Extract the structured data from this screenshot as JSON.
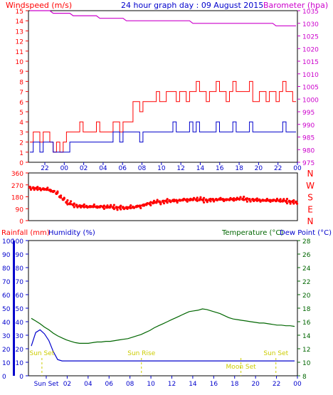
{
  "header": {
    "left_title": "Windspeed (m/s)",
    "center_title": "24 hour graph day : 09 August 2015",
    "right_title": "Barometer (hpa)"
  },
  "colors": {
    "wind_average": "#0000cc",
    "wind_gust": "#ff0000",
    "barometer": "#cc00cc",
    "direction": "#ff0000",
    "temperature": "#006600",
    "rainfall_axis": "#0000cc",
    "humidity": "#0000cc",
    "events": "#cccc00",
    "background": "#ffffff"
  },
  "chart_data": [
    {
      "type": "line",
      "name": "wind-baro",
      "x_ticks": [
        "22",
        "00",
        "02",
        "04",
        "06",
        "08",
        "10",
        "12",
        "14",
        "16",
        "18",
        "20",
        "22",
        "00"
      ],
      "y_left_ticks": [
        "0",
        "1",
        "2",
        "3",
        "4",
        "5",
        "6",
        "7",
        "8",
        "9",
        "10",
        "11",
        "12",
        "13",
        "14",
        "15"
      ],
      "y_right_ticks": [
        "975",
        "980",
        "985",
        "990",
        "995",
        "1000",
        "1005",
        "1010",
        "1015",
        "1020",
        "1025",
        "1030",
        "1035"
      ],
      "ylim_left": [
        0,
        15
      ],
      "ylim_right": [
        975,
        1035
      ],
      "series": [
        {
          "key": "gust",
          "values": [
            2,
            3,
            3,
            2,
            3,
            3,
            2,
            1,
            2,
            1,
            2,
            3,
            3,
            3,
            3,
            4,
            3,
            3,
            3,
            3,
            4,
            3,
            3,
            3,
            3,
            4,
            4,
            3,
            4,
            4,
            4,
            6,
            6,
            5,
            6,
            6,
            6,
            6,
            7,
            6,
            6,
            7,
            7,
            7,
            6,
            7,
            7,
            6,
            7,
            7,
            8,
            7,
            7,
            6,
            7,
            7,
            8,
            7,
            7,
            6,
            7,
            8,
            7,
            7,
            7,
            7,
            8,
            6,
            6,
            7,
            7,
            6,
            7,
            7,
            6,
            7,
            8,
            7,
            7,
            6,
            6
          ]
        },
        {
          "key": "average",
          "values": [
            1,
            2,
            2,
            1,
            2,
            2,
            2,
            1,
            1,
            1,
            1,
            1,
            2,
            2,
            2,
            2,
            2,
            2,
            2,
            2,
            2,
            2,
            2,
            2,
            2,
            3,
            3,
            2,
            3,
            3,
            3,
            3,
            3,
            2,
            3,
            3,
            3,
            3,
            3,
            3,
            3,
            3,
            3,
            4,
            3,
            3,
            3,
            3,
            4,
            3,
            4,
            3,
            3,
            3,
            3,
            3,
            4,
            3,
            3,
            3,
            3,
            4,
            3,
            3,
            3,
            3,
            4,
            3,
            3,
            3,
            3,
            3,
            3,
            3,
            3,
            3,
            4,
            3,
            3,
            3,
            3
          ]
        },
        {
          "key": "barometer",
          "values": [
            1035,
            1035,
            1035,
            1035,
            1035,
            1035,
            1035,
            1034,
            1034,
            1034,
            1034,
            1034,
            1034,
            1033,
            1033,
            1033,
            1033,
            1033,
            1033,
            1033,
            1033,
            1032,
            1032,
            1032,
            1032,
            1032,
            1032,
            1032,
            1032,
            1031,
            1031,
            1031,
            1031,
            1031,
            1031,
            1031,
            1031,
            1031,
            1031,
            1031,
            1031,
            1031,
            1031,
            1031,
            1031,
            1031,
            1031,
            1031,
            1031,
            1030,
            1030,
            1030,
            1030,
            1030,
            1030,
            1030,
            1030,
            1030,
            1030,
            1030,
            1030,
            1030,
            1030,
            1030,
            1030,
            1030,
            1030,
            1030,
            1030,
            1030,
            1030,
            1030,
            1030,
            1030,
            1029,
            1029,
            1029,
            1029,
            1029,
            1029,
            1029
          ]
        }
      ]
    },
    {
      "type": "scatter",
      "name": "wind-direction",
      "y_ticks": [
        "0",
        "90",
        "180",
        "270",
        "360"
      ],
      "compass_labels": [
        "N",
        "W",
        "S",
        "E",
        "N"
      ],
      "ylim": [
        0,
        360
      ],
      "values": [
        252,
        248,
        245,
        242,
        240,
        236,
        230,
        220,
        205,
        180,
        160,
        138,
        128,
        120,
        116,
        112,
        110,
        108,
        106,
        106,
        104,
        104,
        104,
        102,
        102,
        100,
        100,
        100,
        100,
        98,
        100,
        102,
        106,
        110,
        116,
        122,
        128,
        134,
        138,
        142,
        146,
        148,
        150,
        152,
        152,
        154,
        156,
        156,
        156,
        158,
        158,
        158,
        156,
        156,
        158,
        160,
        160,
        162,
        160,
        158,
        158,
        160,
        160,
        162,
        162,
        162,
        160,
        160,
        158,
        156,
        154,
        152,
        152,
        152,
        150,
        150,
        148,
        146,
        146,
        144,
        140
      ]
    },
    {
      "type": "line",
      "name": "rain-humidity-temperature",
      "x_ticks": [
        "Sun Set",
        "02",
        "04",
        "06",
        "08",
        "10",
        "12",
        "14",
        "16",
        "18",
        "20",
        "22",
        "00"
      ],
      "y_left_ticks": [
        "0",
        "10",
        "20",
        "30",
        "40",
        "50",
        "60",
        "70",
        "80",
        "90",
        "100"
      ],
      "y_right_ticks": [
        "8",
        "10",
        "12",
        "14",
        "16",
        "18",
        "20",
        "22",
        "24",
        "26",
        "28"
      ],
      "ylim_left": [
        0,
        100
      ],
      "ylim_right": [
        8,
        28
      ],
      "series": [
        {
          "key": "temperature",
          "values": [
            16.5,
            16.1,
            15.7,
            15.2,
            14.8,
            14.3,
            13.9,
            13.6,
            13.3,
            13.1,
            12.9,
            12.8,
            12.8,
            12.8,
            12.9,
            13.0,
            13.0,
            13.1,
            13.1,
            13.2,
            13.3,
            13.4,
            13.5,
            13.7,
            13.9,
            14.1,
            14.4,
            14.7,
            15.1,
            15.4,
            15.7,
            16.0,
            16.3,
            16.6,
            16.9,
            17.2,
            17.5,
            17.6,
            17.7,
            17.9,
            17.8,
            17.6,
            17.4,
            17.2,
            16.9,
            16.6,
            16.4,
            16.3,
            16.2,
            16.1,
            16.0,
            15.9,
            15.8,
            15.8,
            15.7,
            15.6,
            15.5,
            15.5,
            15.4,
            15.4,
            15.3
          ]
        },
        {
          "key": "humidity",
          "values": [
            22,
            32,
            34,
            31,
            26,
            18,
            12,
            11,
            11,
            11,
            11,
            11,
            11,
            11,
            11,
            11,
            11,
            11,
            11,
            11,
            11,
            11,
            11,
            11,
            11,
            11,
            11,
            11,
            11,
            11,
            11,
            11,
            11,
            11,
            11,
            11,
            11,
            11,
            11,
            11,
            11,
            11,
            11,
            11,
            11,
            11,
            11,
            11,
            11,
            11,
            11,
            11,
            11,
            11,
            11,
            11,
            11,
            11,
            11,
            11,
            11
          ]
        },
        {
          "key": "rainfall",
          "values": [
            0,
            0,
            0,
            0,
            0,
            0,
            0,
            0,
            0,
            0,
            0,
            0,
            0,
            0,
            0,
            0,
            0,
            0,
            0,
            0,
            0,
            0,
            0,
            0,
            0,
            0,
            0,
            0,
            0,
            0,
            0,
            0,
            0,
            0,
            0,
            0,
            0,
            0,
            0,
            0,
            0,
            0,
            0,
            0,
            0,
            0,
            0,
            0,
            0,
            0,
            0,
            0,
            0,
            0,
            0,
            0,
            0,
            0,
            0,
            0,
            0
          ]
        }
      ]
    }
  ],
  "panel3_labels": {
    "rainfall": "Rainfall (mm)",
    "humidity": "Humidity (%)",
    "temperature": "Temperature (°C)",
    "dew_point": "Dew Point (°C)"
  },
  "events": [
    {
      "label": "Sun Set",
      "x_fraction": 0.05
    },
    {
      "label": "Sun Rise",
      "x_fraction": 0.42
    },
    {
      "label": "Sun Set",
      "x_fraction": 0.92
    },
    {
      "label": "Moon Set",
      "x_fraction": 0.79
    }
  ],
  "bottom_tick_labels": [
    "Sun Set",
    "02",
    "04",
    "06",
    "08",
    "10",
    "12",
    "14",
    "16",
    "18",
    "20",
    "22",
    "00"
  ]
}
